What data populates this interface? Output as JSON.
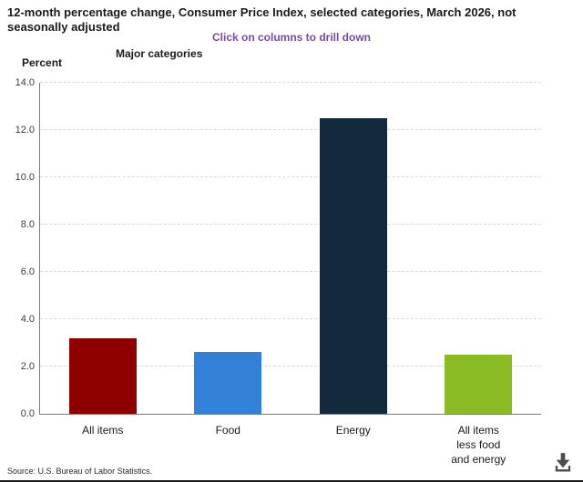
{
  "header": {
    "title_lines": [
      "12-month percentage change, Consumer Price Index, selected categories, March 2026, not",
      "seasonally adjusted"
    ],
    "subtitle": "Click on columns to drill down",
    "group_label": "Major categories",
    "unit_label": "Percent"
  },
  "chart_data": {
    "type": "bar",
    "title": "12-month percentage change, Consumer Price Index, selected categories, March 2026, not seasonally adjusted",
    "categories": [
      "All items",
      "Food",
      "Energy",
      "All items less food and energy"
    ],
    "category_label_lines": [
      [
        "All items"
      ],
      [
        "Food"
      ],
      [
        "Energy"
      ],
      [
        "All items",
        "less food",
        "and energy"
      ]
    ],
    "values": [
      3.2,
      2.6,
      12.5,
      2.5
    ],
    "bar_colors": [
      "#8e0000",
      "#3380d9",
      "#13293e",
      "#8bbc26"
    ],
    "xlabel": "Major categories",
    "ylabel": "Percent",
    "ylim": [
      0,
      14
    ],
    "yticks": [
      0,
      2,
      4,
      6,
      8,
      10,
      12,
      14
    ],
    "ytick_labels": [
      "0.0",
      "2.0",
      "4.0",
      "6.0",
      "8.0",
      "10.0",
      "12.0",
      "14.0"
    ],
    "grid": "horizontal-dashed",
    "legend": "none",
    "note": "Click on columns to drill down"
  },
  "footer": {
    "source": "Source: U.S. Bureau of Labor Statistics.",
    "download_icon": "download-icon"
  },
  "colors": {
    "subtitle_text": "#7b4a9e",
    "axis_line": "#7a7a7a",
    "gridline": "#d9d9d9",
    "title_text": "#1a1a1a",
    "tick_text": "#3d3d3d",
    "source_text": "#262626",
    "icon": "#4d4d4d",
    "bottom_rule": "#1c1c1c"
  }
}
